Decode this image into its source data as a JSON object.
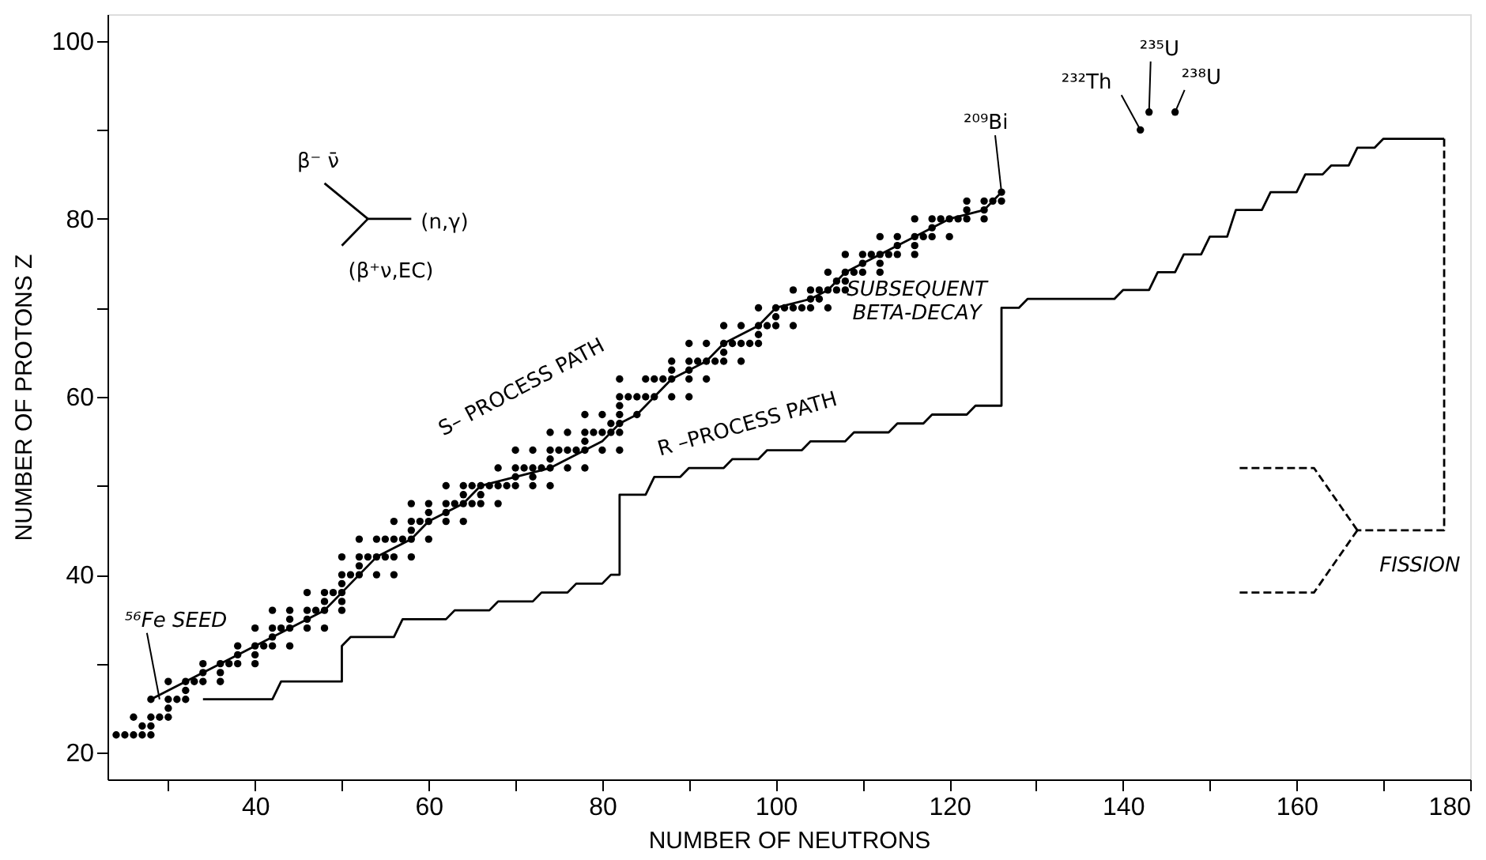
{
  "chart_data": {
    "type": "scatter",
    "xlabel": "NUMBER OF NEUTRONS",
    "ylabel": "NUMBER OF PROTONS Z",
    "xlim": [
      23,
      180
    ],
    "ylim": [
      17,
      103
    ],
    "xticks": [
      {
        "value": 30,
        "label": null
      },
      40,
      {
        "value": 50,
        "label": null
      },
      60,
      {
        "value": 70,
        "label": null
      },
      80,
      {
        "value": 90,
        "label": null
      },
      100,
      {
        "value": 110,
        "label": null
      },
      120,
      {
        "value": 130,
        "label": null
      },
      140,
      {
        "value": 150,
        "label": null
      },
      160,
      {
        "value": 170,
        "label": null
      },
      180
    ],
    "yticks": [
      20,
      {
        "value": 30,
        "label": null
      },
      40,
      {
        "value": 50,
        "label": null
      },
      60,
      {
        "value": 70,
        "label": null
      },
      80,
      {
        "value": 90,
        "label": null
      },
      100
    ],
    "grid": false,
    "marker": "circle",
    "series": [
      {
        "color": "#000000",
        "x": [
          24,
          25,
          26,
          27,
          28,
          27,
          28,
          26,
          28,
          29,
          30,
          30,
          28,
          30,
          31,
          32,
          32,
          30,
          32,
          33,
          34,
          36,
          34,
          36,
          34,
          36,
          37,
          38,
          40,
          38,
          40,
          38,
          40,
          41,
          42,
          44,
          42,
          40,
          42,
          43,
          44,
          46,
          48,
          44,
          46,
          42,
          44,
          46,
          47,
          48,
          50,
          48,
          50,
          46,
          48,
          49,
          50,
          50,
          50,
          51,
          52,
          54,
          56,
          52,
          50,
          52,
          53,
          54,
          55,
          56,
          58,
          52,
          54,
          55,
          56,
          57,
          58,
          60,
          58,
          56,
          58,
          59,
          60,
          62,
          64,
          60,
          62,
          58,
          60,
          62,
          63,
          64,
          65,
          66,
          68,
          64,
          66,
          62,
          64,
          65,
          66,
          67,
          68,
          69,
          70,
          72,
          74,
          70,
          72,
          68,
          70,
          71,
          72,
          73,
          74,
          76,
          78,
          74,
          70,
          72,
          74,
          75,
          76,
          77,
          78,
          80,
          82,
          78,
          74,
          76,
          78,
          79,
          80,
          81,
          82,
          81,
          82,
          78,
          80,
          82,
          84,
          82,
          82,
          83,
          84,
          85,
          86,
          88,
          90,
          82,
          85,
          86,
          87,
          88,
          90,
          92,
          88,
          90,
          88,
          90,
          91,
          92,
          93,
          94,
          96,
          94,
          90,
          92,
          94,
          95,
          96,
          97,
          98,
          98,
          94,
          96,
          98,
          99,
          100,
          102,
          100,
          98,
          100,
          101,
          102,
          103,
          104,
          106,
          104,
          105,
          102,
          104,
          105,
          106,
          107,
          108,
          107,
          108,
          106,
          108,
          109,
          110,
          112,
          110,
          112,
          108,
          110,
          111,
          112,
          113,
          114,
          116,
          114,
          116,
          112,
          114,
          116,
          117,
          118,
          120,
          118,
          116,
          118,
          119,
          120,
          121,
          122,
          124,
          122,
          124,
          122,
          124,
          125,
          126,
          126
        ],
        "values": [
          22,
          22,
          22,
          22,
          22,
          23,
          23,
          24,
          24,
          24,
          24,
          25,
          26,
          26,
          26,
          26,
          27,
          28,
          28,
          28,
          28,
          28,
          29,
          29,
          30,
          30,
          30,
          30,
          30,
          31,
          31,
          32,
          32,
          32,
          32,
          32,
          33,
          34,
          34,
          34,
          34,
          34,
          34,
          35,
          35,
          36,
          36,
          36,
          36,
          36,
          36,
          37,
          37,
          38,
          38,
          38,
          38,
          39,
          40,
          40,
          40,
          40,
          40,
          41,
          42,
          42,
          42,
          42,
          42,
          42,
          42,
          44,
          44,
          44,
          44,
          44,
          44,
          44,
          45,
          46,
          46,
          46,
          46,
          46,
          46,
          47,
          47,
          48,
          48,
          48,
          48,
          48,
          48,
          48,
          48,
          49,
          49,
          50,
          50,
          50,
          50,
          50,
          50,
          50,
          50,
          50,
          50,
          51,
          51,
          52,
          52,
          52,
          52,
          52,
          52,
          52,
          52,
          53,
          54,
          54,
          54,
          54,
          54,
          54,
          54,
          54,
          54,
          55,
          56,
          56,
          56,
          56,
          56,
          56,
          56,
          57,
          57,
          58,
          58,
          58,
          58,
          59,
          60,
          60,
          60,
          60,
          60,
          60,
          60,
          62,
          62,
          62,
          62,
          62,
          62,
          62,
          63,
          63,
          64,
          64,
          64,
          64,
          64,
          64,
          64,
          65,
          66,
          66,
          66,
          66,
          66,
          66,
          66,
          67,
          68,
          68,
          68,
          68,
          68,
          68,
          69,
          70,
          70,
          70,
          70,
          70,
          70,
          70,
          71,
          71,
          72,
          72,
          72,
          72,
          72,
          72,
          73,
          73,
          74,
          74,
          74,
          74,
          74,
          75,
          75,
          76,
          76,
          76,
          76,
          76,
          76,
          76,
          77,
          77,
          78,
          78,
          78,
          78,
          78,
          78,
          79,
          80,
          80,
          80,
          80,
          80,
          80,
          80,
          81,
          81,
          82,
          82,
          82,
          82,
          83
        ]
      },
      {
        "color": "#000000",
        "x": [
          142,
          143,
          146
        ],
        "values": [
          90,
          92,
          92
        ]
      },
      {
        "type": "line",
        "color": "#000000",
        "marker": "none",
        "line_style": "solid",
        "x": [
          28,
          30,
          32,
          34,
          36,
          38,
          40,
          42,
          44,
          46,
          48,
          50,
          52,
          54,
          56,
          58,
          60,
          62,
          64,
          66,
          70,
          74,
          76,
          78,
          80,
          82,
          84,
          86,
          88,
          90,
          92,
          94,
          96,
          98,
          100,
          104,
          106,
          108,
          110,
          112,
          116,
          118,
          120,
          124,
          126
        ],
        "values": [
          26,
          27,
          28,
          29,
          30,
          31,
          32,
          33,
          34,
          35,
          36,
          38,
          40,
          42,
          43,
          44,
          46,
          47,
          48,
          50,
          51,
          52,
          53,
          54,
          55,
          57,
          58,
          60,
          62,
          63,
          64,
          66,
          67,
          68,
          70,
          71,
          72,
          74,
          75,
          76,
          78,
          79,
          80,
          81,
          83
        ]
      },
      {
        "type": "line",
        "color": "#000000",
        "marker": "none",
        "line_style": "solid",
        "x": [
          34,
          42,
          43,
          50,
          50,
          51,
          56,
          57,
          62,
          63,
          67,
          68,
          72,
          73,
          76,
          77,
          80,
          81,
          82,
          82,
          85,
          86,
          89,
          90,
          94,
          95,
          98,
          99,
          103,
          104,
          108,
          109,
          113,
          114,
          117,
          118,
          122,
          123,
          126,
          126,
          128,
          129,
          139,
          140,
          143,
          144,
          146,
          147,
          149,
          150,
          152,
          153,
          156,
          157,
          160,
          161,
          163,
          164,
          166,
          167,
          169,
          170,
          177
        ],
        "values": [
          26,
          26,
          28,
          28,
          32,
          33,
          33,
          35,
          35,
          36,
          36,
          37,
          37,
          38,
          38,
          39,
          39,
          40,
          40,
          49,
          49,
          51,
          51,
          52,
          52,
          53,
          53,
          54,
          54,
          55,
          55,
          56,
          56,
          57,
          57,
          58,
          58,
          59,
          59,
          70,
          70,
          71,
          71,
          72,
          72,
          74,
          74,
          76,
          76,
          78,
          78,
          81,
          81,
          83,
          83,
          85,
          85,
          86,
          86,
          88,
          88,
          89,
          89
        ]
      },
      {
        "type": "line",
        "color": "#000000",
        "marker": "none",
        "line_style": "dashed",
        "x": [
          177,
          177,
          167
        ],
        "values": [
          89,
          45,
          45
        ]
      },
      {
        "type": "line",
        "color": "#000000",
        "marker": "none",
        "line_style": "dashed",
        "x": [
          167,
          162,
          153
        ],
        "values": [
          45,
          52,
          52
        ]
      },
      {
        "type": "line",
        "color": "#000000",
        "marker": "none",
        "line_style": "dashed",
        "x": [
          167,
          162,
          153
        ],
        "values": [
          45,
          38,
          38
        ]
      },
      {
        "type": "line",
        "color": "#000000",
        "marker": "none",
        "line_style": "solid",
        "x": [
          53,
          48
        ],
        "values": [
          80,
          84
        ]
      },
      {
        "type": "line",
        "color": "#000000",
        "marker": "none",
        "line_style": "solid",
        "x": [
          53,
          58
        ],
        "values": [
          80,
          80
        ]
      },
      {
        "type": "line",
        "color": "#000000",
        "marker": "none",
        "line_style": "solid",
        "x": [
          53,
          50
        ],
        "values": [
          80,
          77
        ]
      }
    ],
    "annotations": [
      {
        "text": "⁵⁶Fe SEED",
        "x": 29,
        "y": 26
      },
      {
        "text": "²⁰⁹Bi",
        "x": 126,
        "y": 83
      },
      {
        "text": "²³²Th",
        "x": 142,
        "y": 90
      },
      {
        "text": "²³⁵U",
        "x": 143,
        "y": 92
      },
      {
        "text": "²³⁸U",
        "x": 146,
        "y": 92
      },
      "S– PROCESS PATH",
      {
        "text": "R –PROCESS PATH",
        "x": 96,
        "y": 53
      },
      "SUBSEQUENT\nBETA-DECAY",
      {
        "text": "FISSION",
        "x": 167,
        "y": 45
      },
      {
        "text": "β⁻ ν̄",
        "x": 48,
        "y": 84
      },
      {
        "text": "(n,γ)",
        "x": 58,
        "y": 80
      },
      {
        "text": "(β⁺ν,EC)",
        "x": 50,
        "y": 77
      }
    ]
  }
}
